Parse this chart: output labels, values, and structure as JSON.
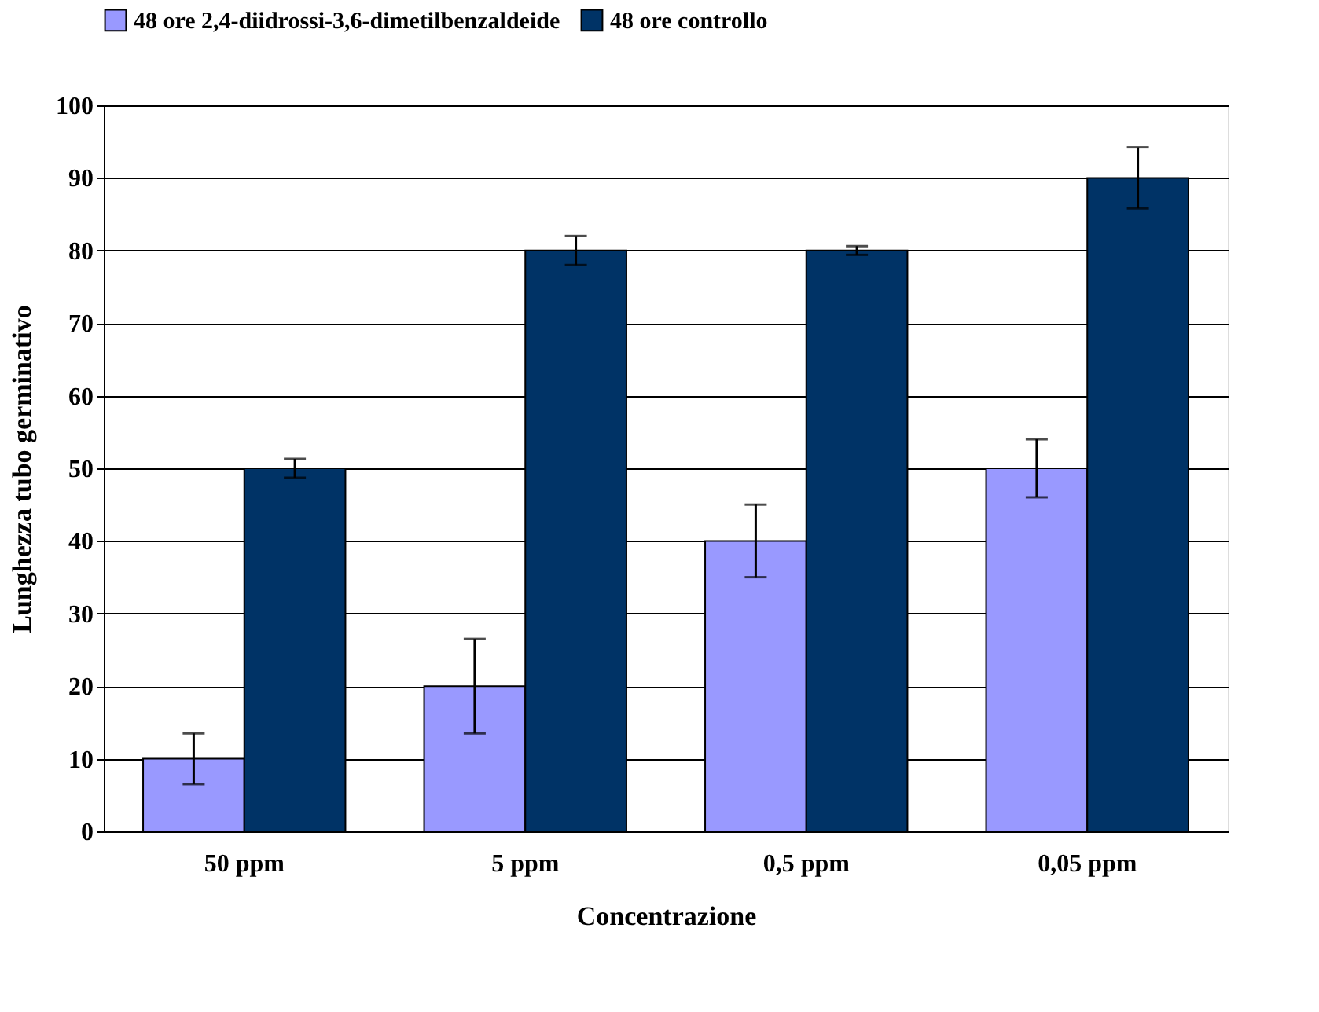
{
  "chart_data": {
    "type": "bar",
    "xlabel": "Concentrazione",
    "ylabel": "Lunghezza tubo germinativo",
    "categories": [
      "50 ppm",
      "5 ppm",
      "0,5 ppm",
      "0,05 ppm"
    ],
    "series": [
      {
        "name": "48 ore 2,4-diidrossi-3,6-dimetilbenzaldeide",
        "color": "#9999ff",
        "values": [
          10,
          20,
          40,
          50
        ],
        "errors": [
          3.5,
          6.5,
          5,
          4
        ]
      },
      {
        "name": "48 ore controllo",
        "color": "#003366",
        "values": [
          50,
          80,
          80,
          90
        ],
        "errors": [
          1.3,
          2,
          0.6,
          4.2
        ]
      }
    ],
    "ylim": [
      0,
      100
    ],
    "yticks": [
      0,
      10,
      20,
      30,
      40,
      50,
      60,
      70,
      80,
      90,
      100
    ],
    "grid": "y",
    "legend": "top"
  }
}
